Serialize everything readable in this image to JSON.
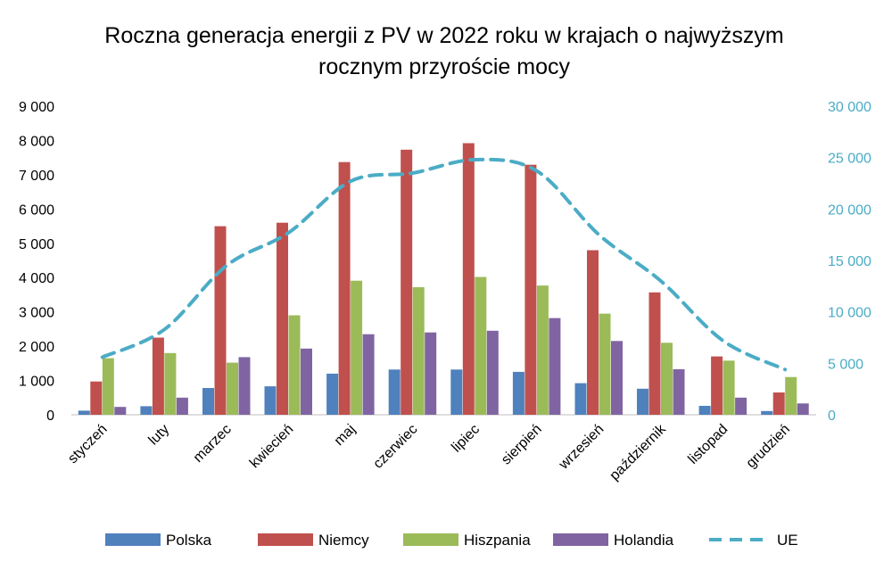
{
  "chart_data": {
    "type": "bar",
    "title": "Roczna generacja energii z PV w 2022 roku w krajach o najwyższym rocznym przyroście mocy",
    "title_lines": [
      "Roczna generacja energii z PV w 2022 roku w krajach o najwyższym",
      "rocznym przyroście mocy"
    ],
    "categories": [
      "styczeń",
      "luty",
      "marzec",
      "kwiecień",
      "maj",
      "czerwiec",
      "lipiec",
      "sierpień",
      "wrzesień",
      "październik",
      "listopad",
      "grudzień"
    ],
    "series": [
      {
        "name": "Polska",
        "color": "#4f81bd",
        "axis": "left",
        "values": [
          120,
          250,
          780,
          830,
          1200,
          1320,
          1320,
          1250,
          920,
          760,
          260,
          110
        ]
      },
      {
        "name": "Niemcy",
        "color": "#c0504d",
        "axis": "left",
        "values": [
          970,
          2250,
          5500,
          5600,
          7370,
          7730,
          7920,
          7290,
          4800,
          3570,
          1700,
          650
        ]
      },
      {
        "name": "Hiszpania",
        "color": "#9bbb59",
        "axis": "left",
        "values": [
          1650,
          1800,
          1520,
          2900,
          3910,
          3720,
          4020,
          3770,
          2950,
          2100,
          1580,
          1100
        ]
      },
      {
        "name": "Holandia",
        "color": "#8064a2",
        "axis": "left",
        "values": [
          230,
          500,
          1680,
          1930,
          2350,
          2400,
          2450,
          2820,
          2150,
          1330,
          500,
          330
        ]
      }
    ],
    "line_series": {
      "name": "UE",
      "color": "#4bacc6",
      "axis": "right",
      "style": "dashed",
      "values": [
        5600,
        8300,
        14500,
        17700,
        22700,
        23500,
        24800,
        23700,
        17500,
        13000,
        7200,
        4400
      ]
    },
    "y_left": {
      "ylim": [
        0,
        9000
      ],
      "ticks": [
        0,
        1000,
        2000,
        3000,
        4000,
        5000,
        6000,
        7000,
        8000,
        9000
      ],
      "tick_labels": [
        "0",
        "1 000",
        "2 000",
        "3 000",
        "4 000",
        "5 000",
        "6 000",
        "7 000",
        "8 000",
        "9 000"
      ]
    },
    "y_right": {
      "ylim": [
        0,
        30000
      ],
      "ticks": [
        0,
        5000,
        10000,
        15000,
        20000,
        25000,
        30000
      ],
      "tick_labels": [
        "0",
        "5 000",
        "10 000",
        "15 000",
        "20 000",
        "25 000",
        "30 000"
      ],
      "color": "#4bacc6"
    },
    "legend": {
      "placement": "bottom",
      "entries": [
        "Polska",
        "Niemcy",
        "Hiszpania",
        "Holandia",
        "UE"
      ]
    },
    "grid": false
  }
}
